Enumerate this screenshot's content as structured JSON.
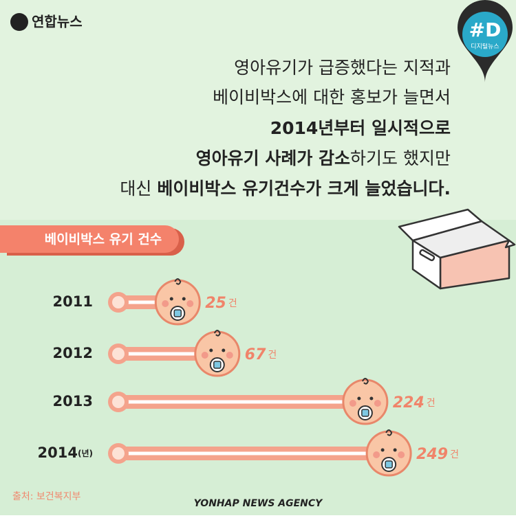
{
  "logo": "연합뉴스",
  "badge": {
    "mark": "#D",
    "label": "디지털뉴스"
  },
  "headline": [
    [
      {
        "text": "영아유기가 급증했다는 지적과",
        "bold": false
      }
    ],
    [
      {
        "text": "베이비박스에 대한 홍보가 늘면서",
        "bold": false
      }
    ],
    [
      {
        "text": "2014년부터 일시적으로",
        "bold": true
      }
    ],
    [
      {
        "text": "영아유기 사례가 감소",
        "bold": true
      },
      {
        "text": "하기도 했지만",
        "bold": false
      }
    ],
    [
      {
        "text": "대신 ",
        "bold": false
      },
      {
        "text": "베이비박스 유기건수가 크게 늘었습니다.",
        "bold": true
      }
    ]
  ],
  "chart_data": {
    "type": "bar",
    "orientation": "horizontal",
    "title": "베이비박스 유기 건수",
    "categories": [
      "2011",
      "2012",
      "2013",
      "2014"
    ],
    "category_unit": "(년)",
    "values": [
      25,
      67,
      224,
      249
    ],
    "unit": "건",
    "color": "#f4a38c"
  },
  "source": "출처: 보건복지부",
  "footer": "YONHAP NEWS AGENCY"
}
